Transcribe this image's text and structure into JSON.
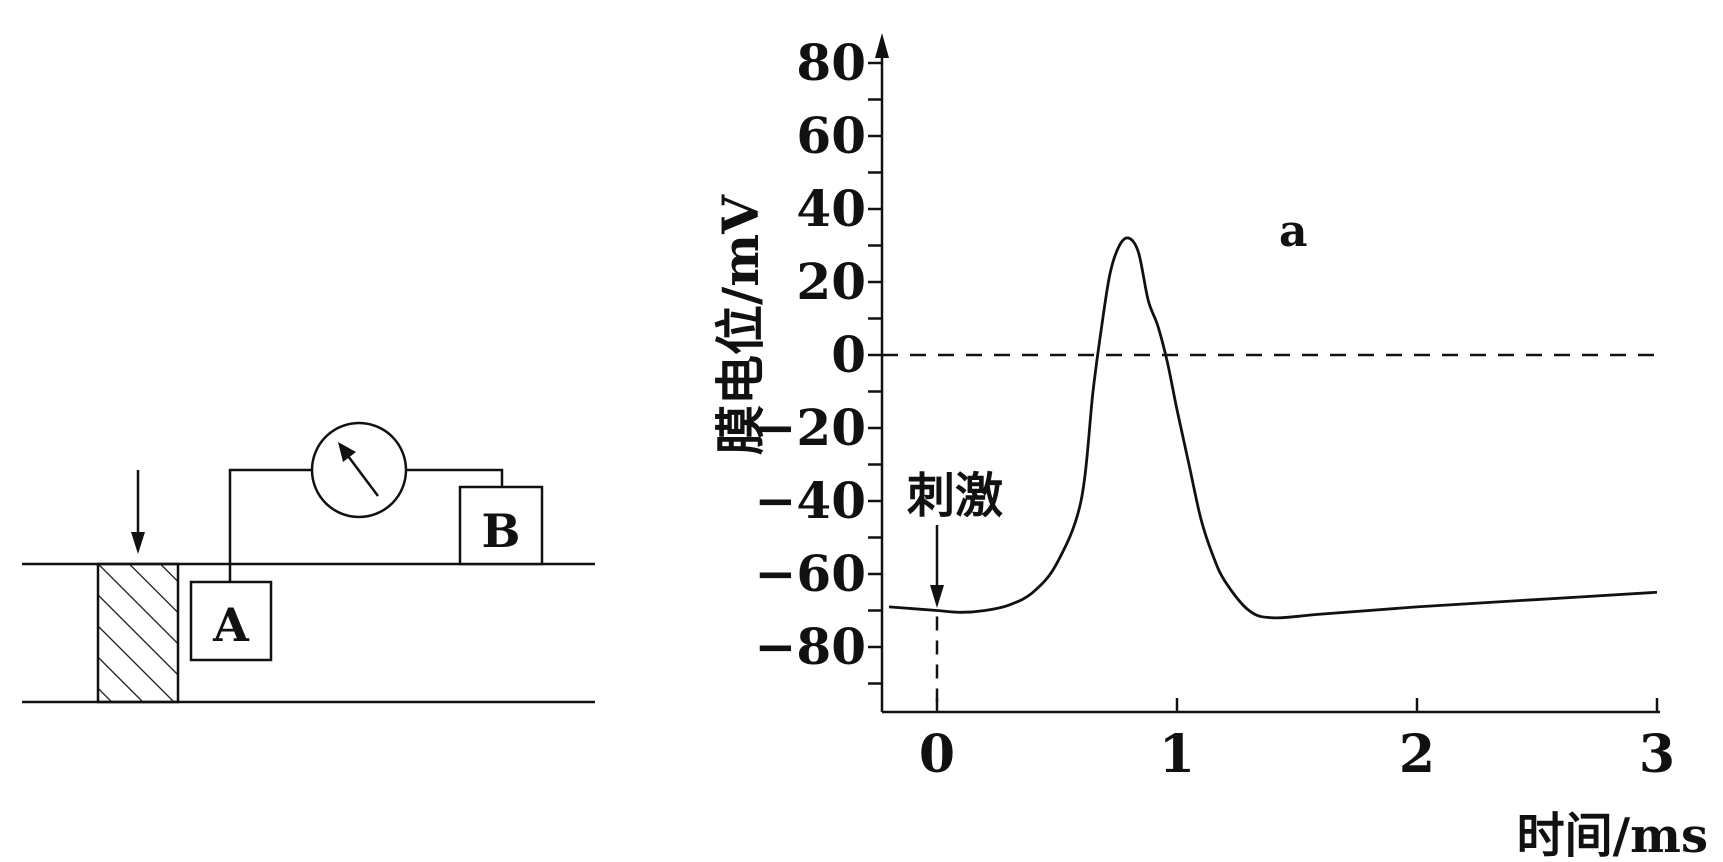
{
  "circuit": {
    "electrode_a": "A",
    "electrode_b": "B"
  },
  "chart_data": {
    "type": "line",
    "title": "",
    "ylabel": "膜电位/mV",
    "xlabel": "时间/ms",
    "xlim": [
      -0.2,
      3
    ],
    "ylim": [
      -95,
      90
    ],
    "x_ticks": [
      0,
      1,
      2,
      3
    ],
    "x_tick_labels": [
      "0",
      "1",
      "2",
      "3"
    ],
    "y_ticks": [
      80,
      60,
      40,
      20,
      0,
      -20,
      -40,
      -60,
      -80
    ],
    "y_tick_labels": [
      "80",
      "60",
      "40",
      "20",
      "0",
      "−20",
      "−40",
      "−60",
      "−80"
    ],
    "reference_line": {
      "y": 0,
      "style": "dashed"
    },
    "stimulus": {
      "label": "刺激",
      "x": 0
    },
    "peak_label": {
      "text": "a",
      "x": 0.8,
      "y": 32
    },
    "series": [
      {
        "x": [
          -0.2,
          -0.1,
          0,
          0.1,
          0.2,
          0.3,
          0.4,
          0.5,
          0.6,
          0.65,
          0.68,
          0.72,
          0.76,
          0.8,
          0.84,
          0.88,
          0.92,
          0.96,
          1.0,
          1.05,
          1.1,
          1.15,
          1.2,
          1.3,
          1.4,
          1.6,
          2.0,
          2.5,
          3.0
        ],
        "y": [
          -69,
          -69.5,
          -70,
          -70.5,
          -70,
          -68.5,
          -65,
          -57,
          -40,
          -10,
          5,
          22,
          30,
          32,
          28,
          15,
          8,
          -2,
          -15,
          -30,
          -45,
          -55,
          -62,
          -70,
          -72,
          -71,
          -69,
          -67,
          -65
        ]
      }
    ]
  }
}
